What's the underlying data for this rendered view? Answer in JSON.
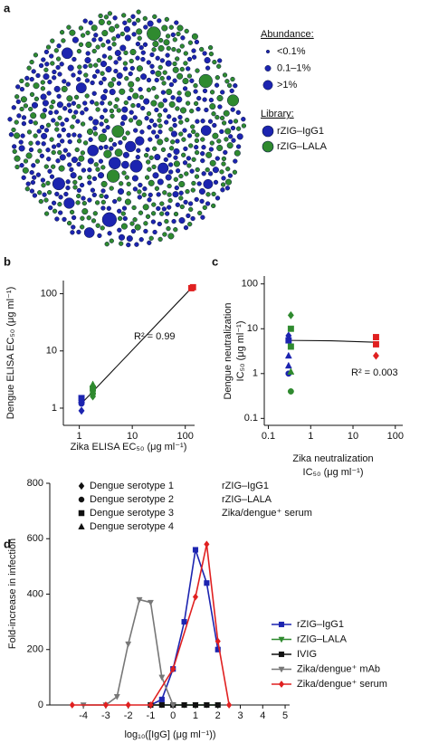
{
  "panel_a": {
    "panel": "a",
    "abundance_title": "Abundance:",
    "abundance_levels": [
      "<0.1%",
      "0.1–1%",
      ">1%"
    ],
    "library_title": "Library:",
    "libraries": [
      {
        "name": "rZIG–IgG1",
        "color": "#1c24b0"
      },
      {
        "name": "rZIG–LALA",
        "color": "#2f8a2f"
      }
    ]
  },
  "legend_bc": {
    "shapes": [
      {
        "name": "Dengue serotype 1",
        "marker": "diamond"
      },
      {
        "name": "Dengue serotype 2",
        "marker": "circle"
      },
      {
        "name": "Dengue serotype 3",
        "marker": "square"
      },
      {
        "name": "Dengue serotype 4",
        "marker": "triangle"
      }
    ],
    "groups": [
      "rZIG–IgG1",
      "rZIG–LALA",
      "Zika/dengue⁺ serum"
    ]
  },
  "chart_data": [
    {
      "panel": "b",
      "type": "scatter",
      "log_x": true,
      "log_y": true,
      "xlabel": [
        "Zika ELISA EC₅₀ (μg ml⁻¹)"
      ],
      "ylabel": [
        "Dengue ELISA EC₅₀ (μg ml⁻¹)"
      ],
      "xlim": [
        0.5,
        150
      ],
      "xticks": [
        1,
        10,
        100
      ],
      "ylim": [
        0.5,
        170
      ],
      "yticks": [
        1,
        10,
        100
      ],
      "annotation": "R² = 0.99",
      "fit": {
        "x": [
          1,
          130
        ],
        "values": [
          1.1,
          125
        ]
      },
      "series": [
        {
          "color": "#1c24b0",
          "markers": [
            "diamond",
            "circle",
            "triangle",
            "square"
          ],
          "x": [
            1.1,
            1.1,
            1.1,
            1.1
          ],
          "values": [
            0.9,
            1.2,
            1.4,
            1.5
          ]
        },
        {
          "color": "#2f8a2f",
          "markers": [
            "diamond",
            "circle",
            "square",
            "triangle"
          ],
          "x": [
            1.8,
            1.8,
            1.8,
            1.8
          ],
          "values": [
            1.6,
            1.8,
            2.2,
            2.6
          ]
        },
        {
          "color": "#e02020",
          "markers": [
            "square",
            "square"
          ],
          "x": [
            130,
            140
          ],
          "values": [
            125,
            130
          ]
        }
      ]
    },
    {
      "panel": "c",
      "type": "scatter",
      "log_x": true,
      "log_y": true,
      "xlabel": [
        "Zika neutralization",
        "IC₅₀ (μg ml⁻¹)"
      ],
      "ylabel": [
        "Dengue neutralization",
        "IC₅₀ (μg ml⁻¹)"
      ],
      "xlim": [
        0.08,
        150
      ],
      "xticks": [
        0.1,
        1,
        10,
        100
      ],
      "ylim": [
        0.07,
        150
      ],
      "yticks": [
        0.1,
        1,
        10,
        100
      ],
      "annotation": "R² = 0.003",
      "fit": {
        "x": [
          0.3,
          3,
          35
        ],
        "values": [
          5.5,
          5.4,
          5
        ]
      },
      "series": [
        {
          "color": "#1c24b0",
          "markers": [
            "diamond",
            "square",
            "triangle",
            "triangle",
            "circle"
          ],
          "x": [
            0.3,
            0.3,
            0.3,
            0.3,
            0.3
          ],
          "values": [
            7,
            5.5,
            2.5,
            1.5,
            1
          ]
        },
        {
          "color": "#2f8a2f",
          "markers": [
            "diamond",
            "square",
            "square",
            "triangle",
            "circle"
          ],
          "x": [
            0.34,
            0.34,
            0.34,
            0.34,
            0.34
          ],
          "values": [
            20,
            10,
            4,
            1.1,
            0.4
          ]
        },
        {
          "color": "#e02020",
          "markers": [
            "square",
            "square",
            "diamond"
          ],
          "x": [
            35,
            35,
            35
          ],
          "values": [
            6.5,
            4.5,
            2.5
          ]
        }
      ]
    },
    {
      "panel": "d",
      "type": "line",
      "xlabel": [
        "log₁₀([IgG] (μg ml⁻¹))"
      ],
      "ylabel": [
        "Fold-increase in infection"
      ],
      "xlim": [
        -5.5,
        5.2
      ],
      "xticks": [
        -4,
        -3,
        -2,
        -1,
        0,
        1,
        2,
        3,
        4,
        5
      ],
      "ylim": [
        0,
        800
      ],
      "yticks": [
        0,
        200,
        400,
        600,
        800
      ],
      "series": [
        {
          "name": "rZIG–IgG1",
          "color": "#1c24b0",
          "marker": "square",
          "x": [
            -1,
            -0.5,
            0,
            0.5,
            1,
            1.5,
            2
          ],
          "values": [
            0,
            20,
            130,
            300,
            560,
            440,
            200
          ]
        },
        {
          "name": "rZIG–LALA",
          "color": "#2f8a2f",
          "marker": "triangle-down",
          "x": [
            -1,
            -0.5,
            0,
            0.5,
            1,
            1.5,
            2
          ],
          "values": [
            0,
            0,
            0,
            0,
            0,
            0,
            0
          ]
        },
        {
          "name": "IVIG",
          "color": "#111111",
          "marker": "square",
          "x": [
            -1,
            -0.5,
            0,
            0.5,
            1,
            1.5,
            2
          ],
          "values": [
            0,
            0,
            0,
            0,
            0,
            0,
            0
          ]
        },
        {
          "name": "Zika/dengue⁺ mAb",
          "color": "#777777",
          "marker": "triangle-down",
          "x": [
            -4,
            -3,
            -2.5,
            -2,
            -1.5,
            -1,
            -0.5,
            0
          ],
          "values": [
            0,
            0,
            30,
            220,
            380,
            370,
            100,
            0
          ]
        },
        {
          "name": "Zika/dengue⁺ serum",
          "color": "#e02020",
          "marker": "diamond",
          "x": [
            -4.5,
            -3,
            -2,
            -1,
            0,
            1,
            1.5,
            2,
            2.5
          ],
          "values": [
            0,
            0,
            0,
            0,
            130,
            390,
            580,
            230,
            0
          ]
        }
      ]
    }
  ]
}
